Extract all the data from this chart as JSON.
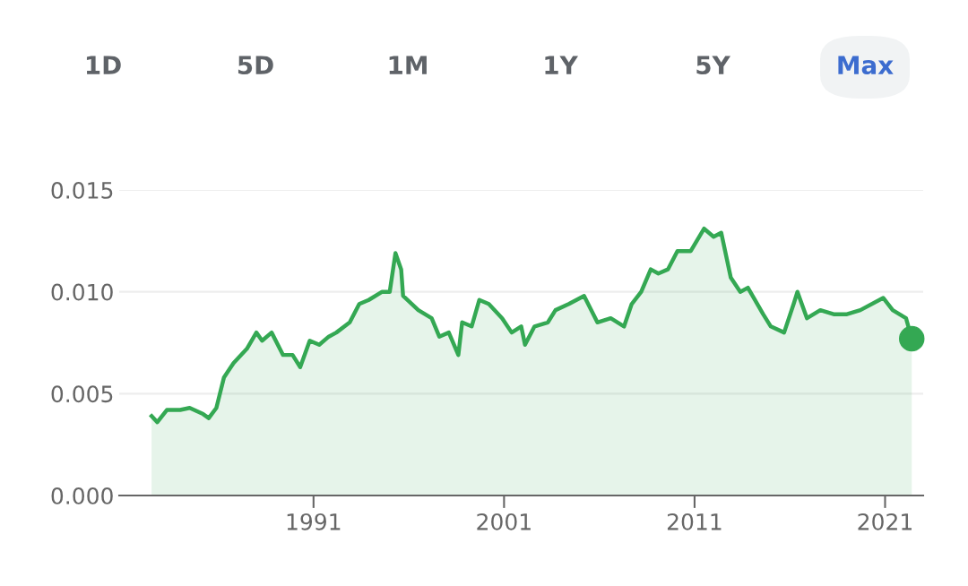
{
  "chart_data": {
    "type": "area",
    "annotations": [
      "1D",
      "5D",
      "1M",
      "1Y",
      "5Y",
      "Max"
    ],
    "xlim": [
      1980.8,
      2023.0
    ],
    "xticks": [
      1991,
      2001,
      2011,
      2021
    ],
    "ylim": [
      0,
      0.015
    ],
    "yticks": [
      {
        "value": 0,
        "label": "0.000"
      },
      {
        "value": 0.005,
        "label": "0.005"
      },
      {
        "value": 0.01,
        "label": "0.010"
      },
      {
        "value": 0.015,
        "label": "0.015"
      }
    ],
    "grid": "y",
    "series": [
      {
        "color": "#34a853",
        "x": [
          1982.5,
          1982.8,
          1983.3,
          1984.0,
          1984.5,
          1985.2,
          1985.5,
          1985.9,
          1986.3,
          1986.8,
          1987.5,
          1988.0,
          1988.3,
          1988.8,
          1989.4,
          1989.9,
          1990.3,
          1990.8,
          1991.3,
          1991.8,
          1992.2,
          1992.9,
          1993.4,
          1993.9,
          1994.6,
          1995.0,
          1995.3,
          1995.6,
          1995.7,
          1996.5,
          1997.2,
          1997.6,
          1998.1,
          1998.6,
          1998.8,
          1999.3,
          1999.7,
          2000.2,
          2000.9,
          2001.4,
          2001.9,
          2002.1,
          2002.6,
          2003.3,
          2003.7,
          2004.4,
          2005.2,
          2005.9,
          2006.6,
          2007.3,
          2007.7,
          2008.2,
          2008.7,
          2009.1,
          2009.6,
          2010.1,
          2010.8,
          2011.5,
          2012.0,
          2012.4,
          2012.9,
          2013.4,
          2013.8,
          2014.6,
          2015.0,
          2015.7,
          2016.2,
          2016.4,
          2016.9,
          2017.6,
          2018.3,
          2019.0,
          2019.7,
          2020.9,
          2021.4,
          2022.1,
          2022.4
        ],
        "values": [
          0.0039,
          0.0036,
          0.0042,
          0.0042,
          0.0043,
          0.004,
          0.0038,
          0.0043,
          0.0058,
          0.0065,
          0.0072,
          0.008,
          0.0076,
          0.008,
          0.0069,
          0.0069,
          0.0063,
          0.0076,
          0.0074,
          0.0078,
          0.008,
          0.0085,
          0.0094,
          0.0096,
          0.01,
          0.01,
          0.0119,
          0.0111,
          0.0098,
          0.0091,
          0.0087,
          0.0078,
          0.008,
          0.0069,
          0.0085,
          0.0083,
          0.0096,
          0.0094,
          0.0087,
          0.008,
          0.0083,
          0.0074,
          0.0083,
          0.0085,
          0.0091,
          0.0094,
          0.0098,
          0.0085,
          0.0087,
          0.0083,
          0.0094,
          0.01,
          0.0111,
          0.0109,
          0.0111,
          0.012,
          0.012,
          0.0131,
          0.0127,
          0.0129,
          0.0107,
          0.01,
          0.0102,
          0.0089,
          0.0083,
          0.008,
          0.0094,
          0.01,
          0.0087,
          0.0091,
          0.0089,
          0.0089,
          0.0091,
          0.0097,
          0.0091,
          0.0087,
          0.0077
        ]
      },
      {
        "type": "scatter",
        "color": "#34a853",
        "marker": "circle",
        "x": [
          2022.4
        ],
        "values": [
          0.0077
        ]
      }
    ]
  }
}
